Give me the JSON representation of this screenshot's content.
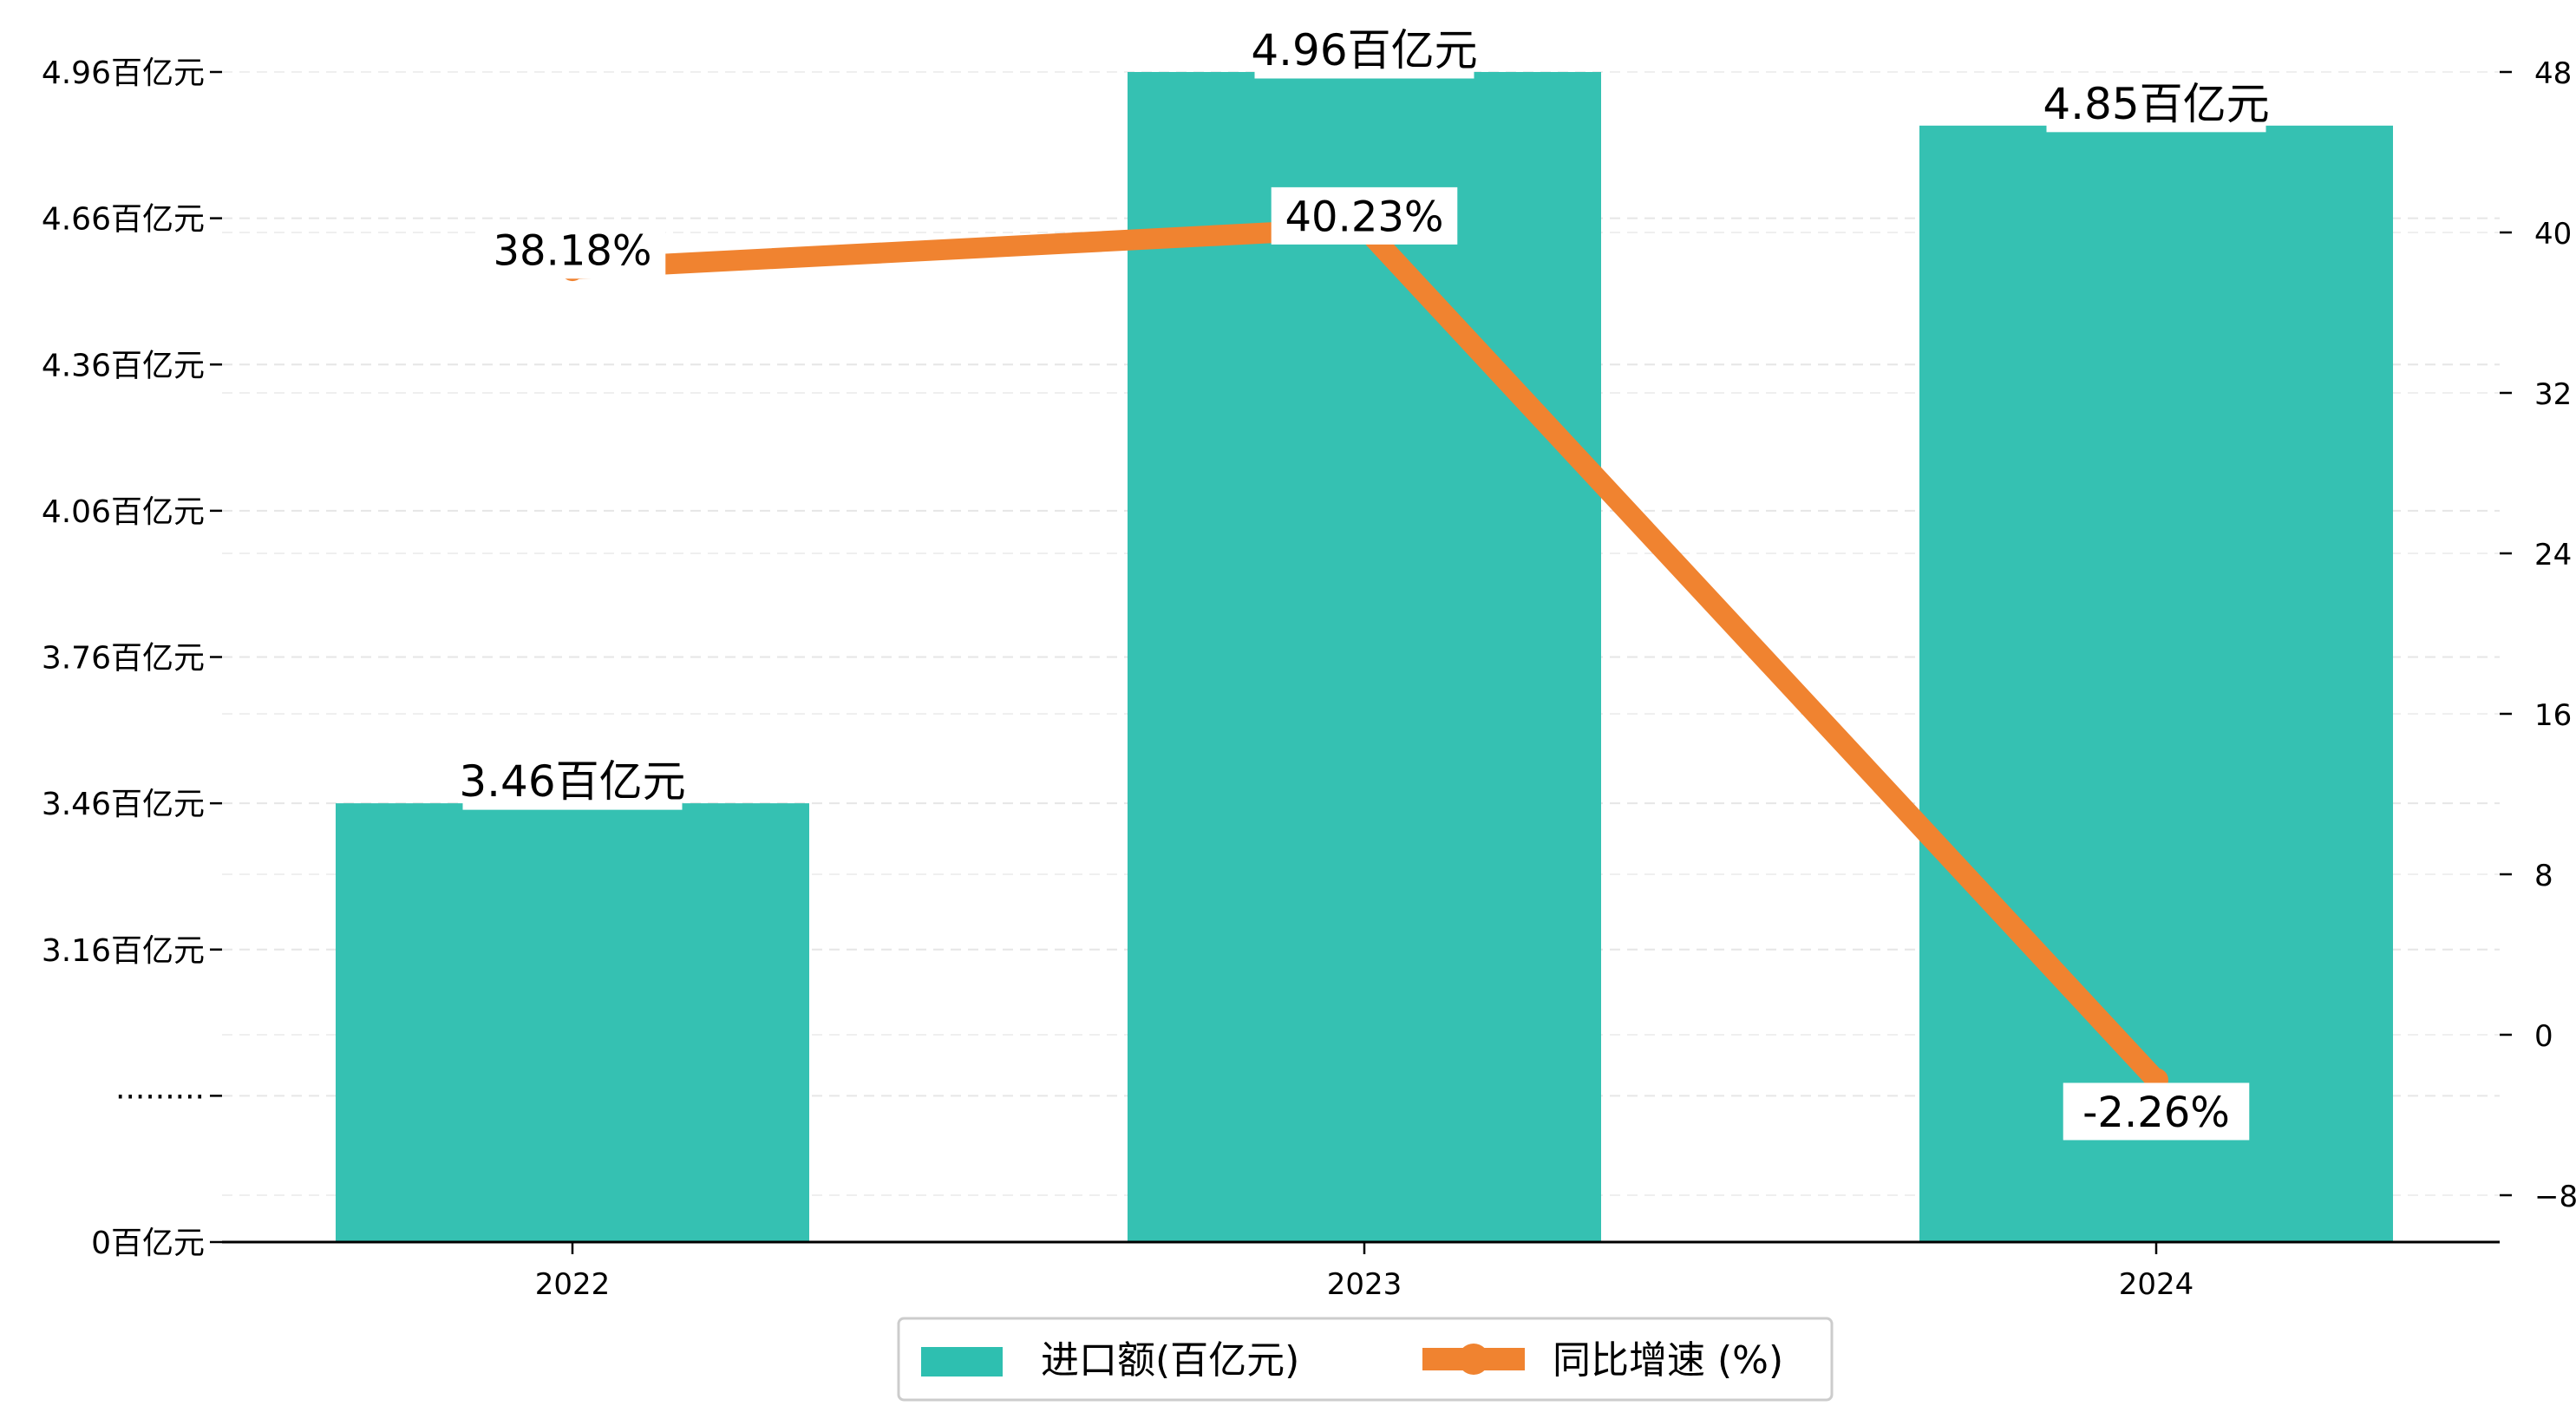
{
  "chart_data": {
    "type": "bar",
    "categories": [
      "2022",
      "2023",
      "2024"
    ],
    "series": [
      {
        "name": "进口额(百亿元)",
        "type": "bar",
        "axis": "left",
        "color": "#2ebfb0",
        "values": [
          3.46,
          4.96,
          4.85
        ],
        "labels": [
          "3.46百亿元",
          "4.96百亿元",
          "4.85百亿元"
        ]
      },
      {
        "name": "同比增速 (%)",
        "type": "line",
        "axis": "right",
        "color": "#f08330",
        "values": [
          38.18,
          40.23,
          -2.26
        ],
        "labels": [
          "38.18%",
          "40.23%",
          "-2.26%"
        ]
      }
    ],
    "y_left": {
      "ticks": [
        {
          "value": 0,
          "label": "0百亿元"
        },
        {
          "value": 2.86,
          "label": "·········"
        },
        {
          "value": 3.16,
          "label": "3.16百亿元"
        },
        {
          "value": 3.46,
          "label": "3.46百亿元"
        },
        {
          "value": 3.76,
          "label": "3.76百亿元"
        },
        {
          "value": 4.06,
          "label": "4.06百亿元"
        },
        {
          "value": 4.36,
          "label": "4.36百亿元"
        },
        {
          "value": 4.66,
          "label": "4.66百亿元"
        },
        {
          "value": 4.96,
          "label": "4.96百亿元"
        }
      ],
      "axis_break": true
    },
    "y_right": {
      "ticks": [
        -8,
        0,
        8,
        16,
        24,
        32,
        40,
        48
      ],
      "ylim": [
        -10.21,
        48.1
      ]
    },
    "grid": true,
    "legend_position": "bottom-center"
  }
}
